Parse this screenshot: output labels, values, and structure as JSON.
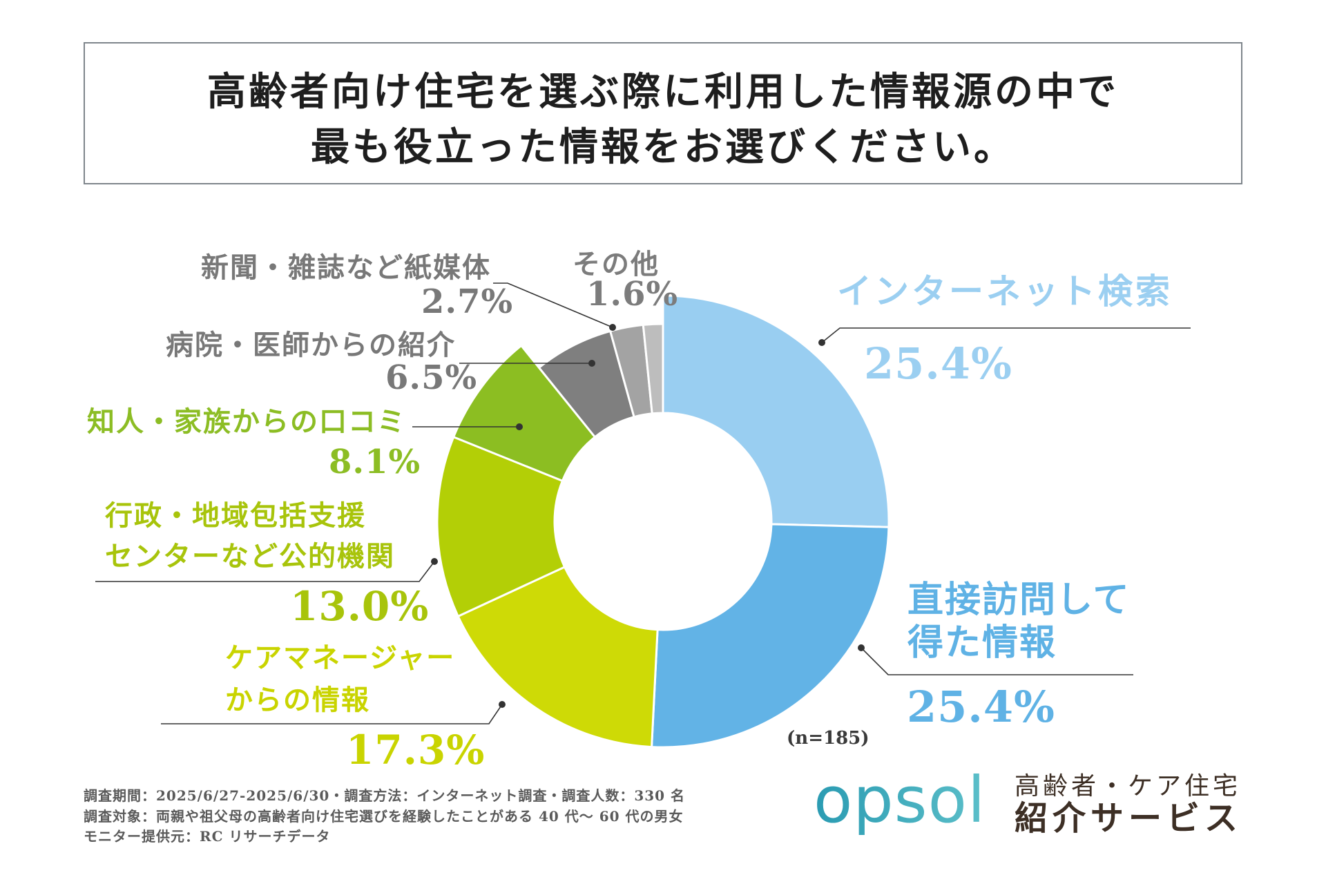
{
  "title": {
    "line1": "高齢者向け住宅を選ぶ際に利用した情報源の中で",
    "line2": "最も役立った情報をお選びください。"
  },
  "chart_data": {
    "type": "pie",
    "sample_size_label": "(n=185)",
    "slices": [
      {
        "label": [
          "インターネット検索"
        ],
        "value": 25.4,
        "display": "25.4%",
        "color": "#99CEF1",
        "text_color": "#9BCFF1"
      },
      {
        "label": [
          "直接訪問して",
          "得た情報"
        ],
        "value": 25.4,
        "display": "25.4%",
        "color": "#62B3E6",
        "text_color": "#5FB2E5"
      },
      {
        "label": [
          "ケアマネージャー",
          "からの情報"
        ],
        "value": 17.3,
        "display": "17.3%",
        "color": "#CEDA06",
        "text_color": "#C9D400"
      },
      {
        "label": [
          "行政・地域包括支援",
          "センターなど公的機関"
        ],
        "value": 13.0,
        "display": "13.0%",
        "color": "#B3CF06",
        "text_color": "#A8C40B"
      },
      {
        "label": [
          "知人・家族からの口コミ"
        ],
        "value": 8.1,
        "display": "8.1%",
        "color": "#8CBE22",
        "text_color": "#8CBD24"
      },
      {
        "label": [
          "病院・医師からの紹介"
        ],
        "value": 6.5,
        "display": "6.5%",
        "color": "#7F7F7F",
        "text_color": "#787878"
      },
      {
        "label": [
          "新聞・雑誌など紙媒体"
        ],
        "value": 2.7,
        "display": "2.7%",
        "color": "#A3A3A3",
        "text_color": "#787878"
      },
      {
        "label": [
          "その他"
        ],
        "value": 1.6,
        "display": "1.6%",
        "color": "#BDBDBD",
        "text_color": "#7C7C7C"
      }
    ]
  },
  "footer": {
    "notes": [
      "調査期間：2025/6/27-2025/6/30・調査方法：インターネット調査・調査人数：330 名",
      "調査対象：両親や祖父母の高齢者向け住宅選びを経験したことがある 40 代〜 60 代の男女",
      "モニター提供元：RC リサーチデータ"
    ]
  },
  "logo": {
    "wordmark": "opsol",
    "tagline1": "高齢者・ケア住宅",
    "tagline2": "紹介サービス",
    "colors": {
      "gradient_start": "#2A9BB2",
      "gradient_end": "#5CBFC9"
    }
  }
}
